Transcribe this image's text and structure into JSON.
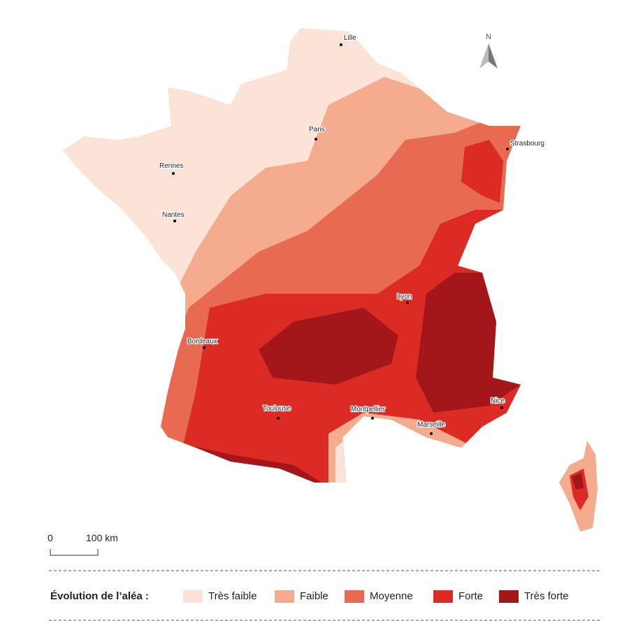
{
  "north": "N",
  "cities": [
    "Lille",
    "Paris",
    "Strasbourg",
    "Rennes",
    "Nantes",
    "Lyon",
    "Bordeaux",
    "Nice",
    "Toulouse",
    "Montpellier",
    "Marseille"
  ],
  "scale": {
    "start": "0",
    "end": "100 km"
  },
  "legend": {
    "title": "Évolution de l’aléa :",
    "items": [
      {
        "name": "Très faible",
        "color": "#fbe3d7"
      },
      {
        "name": "Faible",
        "color": "#f4ab8e"
      },
      {
        "name": "Moyenne",
        "color": "#e86a52"
      },
      {
        "name": "Forte",
        "color": "#dc2a25"
      },
      {
        "name": "Très forte",
        "color": "#a3171b"
      }
    ]
  }
}
